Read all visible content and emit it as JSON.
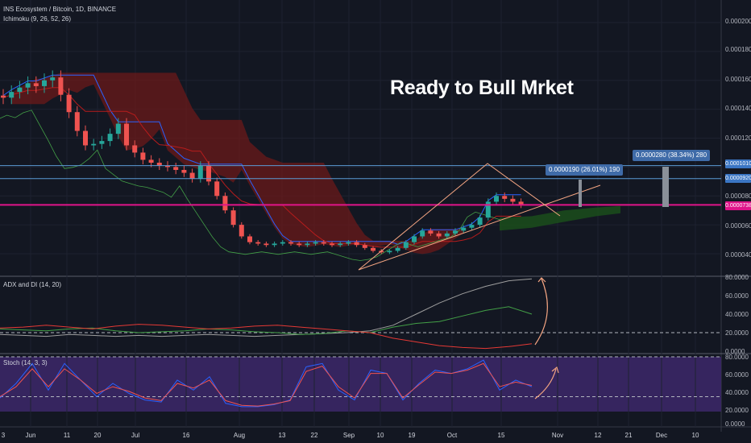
{
  "header": {
    "symbol": "INS Ecosystem / Bitcoin, 1D, BINANCE",
    "ichimoku": "Ichimoku (9, 26, 52, 26)",
    "adx": "ADX and DI (14, 20)",
    "stoch": "Stoch (14, 3, 3)"
  },
  "headline": "Ready to Bull Mrket",
  "price_scale": {
    "labels": [
      "0.0002000",
      "0.0001800",
      "0.0001600",
      "0.0001400",
      "0.0001200",
      "0.0001000",
      "0.0000800",
      "0.0000600",
      "0.0000400"
    ],
    "tag_a": "0.0001010",
    "tag_b": "0.0000920",
    "tag_current": "0.0000738"
  },
  "adx_scale": [
    "80.0000",
    "60.0000",
    "40.0000",
    "20.0000",
    "0.0000"
  ],
  "stoch_scale": [
    "80.0000",
    "60.0000",
    "40.0000",
    "20.0000",
    "0.0000"
  ],
  "targets": {
    "target1": "0.0000190 (26.01%) 190",
    "target2": "0.0000280 (38.34%) 280"
  },
  "x_axis": [
    "3",
    "Jun",
    "11",
    "20",
    "Jul",
    "16",
    "Aug",
    "13",
    "22",
    "Sep",
    "10",
    "19",
    "Oct",
    "15",
    "Nov",
    "12",
    "21",
    "Dec",
    "10"
  ],
  "colors": {
    "bg": "#131722",
    "up": "#26a69a",
    "down": "#ef5350",
    "conversion": "#2962ff",
    "base": "#b71c1c",
    "lagging": "#43a047",
    "cloud_bear": "#6b1a1a",
    "cloud_bull": "#1b4d1b",
    "adx": "#9e9e9e",
    "di_plus": "#43a047",
    "di_minus": "#e53935",
    "stoch_k": "#2962ff",
    "stoch_d": "#ef5350",
    "stoch_bg": "#3b2766",
    "triangle": "#f4a582"
  },
  "chart_data": [
    {
      "type": "candlestick",
      "title": "INS Ecosystem / Bitcoin, 1D, BINANCE",
      "ylim": [
        3.2e-05,
        0.00021
      ],
      "close_path": [
        0.000148,
        0.000152,
        0.000155,
        0.000158,
        0.000156,
        0.00016,
        0.000162,
        0.00015,
        0.000138,
        0.000125,
        0.000115,
        0.000116,
        0.000118,
        0.000123,
        0.00013,
        0.000115,
        0.00011,
        0.000105,
        0.000103,
        0.000101,
        0.0001,
        9.8e-05,
        9.6e-05,
        9.2e-05,
        0.000101,
        9e-05,
        8e-05,
        7e-05,
        6e-05,
        5.2e-05,
        4.8e-05,
        4.7e-05,
        4.6e-05,
        4.7e-05,
        4.8e-05,
        4.7e-05,
        4.6e-05,
        4.7e-05,
        4.8e-05,
        4.7e-05,
        4.6e-05,
        4.7e-05,
        4.8e-05,
        4.6e-05,
        4.4e-05,
        4.2e-05,
        4.1e-05,
        4.2e-05,
        4.4e-05,
        4.8e-05,
        5.2e-05,
        5.6e-05,
        5.4e-05,
        5.2e-05,
        5.4e-05,
        5.6e-05,
        5.8e-05,
        6e-05,
        6.5e-05,
        7.6e-05,
        8e-05,
        7.8e-05,
        7.6e-05,
        7.38e-05
      ],
      "current": 7.38e-05,
      "levels": [
        0.000101,
        9.2e-05
      ],
      "targets": [
        1.9e-05,
        2.8e-05
      ]
    },
    {
      "type": "line",
      "title": "ADX and DI (14, 20)",
      "ylim": [
        0,
        80
      ],
      "series": [
        {
          "values": [
            18,
            17,
            16,
            18,
            17,
            16,
            17,
            16,
            17,
            18,
            17,
            16,
            17,
            18,
            19,
            20,
            22,
            28,
            40,
            52,
            62,
            70,
            76,
            78
          ]
        },
        {
          "values": [
            24,
            23,
            22,
            24,
            25,
            22,
            20,
            21,
            22,
            24,
            23,
            21,
            20,
            18,
            19,
            22,
            20,
            26,
            30,
            32,
            38,
            44,
            48,
            40
          ]
        },
        {
          "values": [
            25,
            26,
            28,
            26,
            24,
            27,
            29,
            28,
            26,
            24,
            25,
            27,
            28,
            26,
            24,
            22,
            20,
            14,
            10,
            6,
            4,
            3,
            5,
            8
          ]
        }
      ],
      "threshold": 20
    },
    {
      "type": "line",
      "title": "Stoch (14, 3, 3)",
      "ylim": [
        0,
        80
      ],
      "series": [
        {
          "values": [
            18,
            40,
            70,
            30,
            70,
            45,
            20,
            40,
            25,
            15,
            12,
            45,
            30,
            50,
            10,
            5,
            5,
            8,
            15,
            65,
            70,
            30,
            15,
            60,
            55,
            15,
            40,
            60,
            55,
            62,
            75,
            30,
            45,
            35
          ]
        },
        {
          "values": [
            20,
            35,
            62,
            35,
            62,
            45,
            25,
            35,
            28,
            18,
            14,
            40,
            33,
            45,
            14,
            7,
            6,
            9,
            14,
            58,
            66,
            35,
            18,
            55,
            55,
            18,
            38,
            57,
            55,
            60,
            70,
            35,
            42,
            37
          ]
        }
      ],
      "bands": [
        20,
        80
      ]
    }
  ]
}
